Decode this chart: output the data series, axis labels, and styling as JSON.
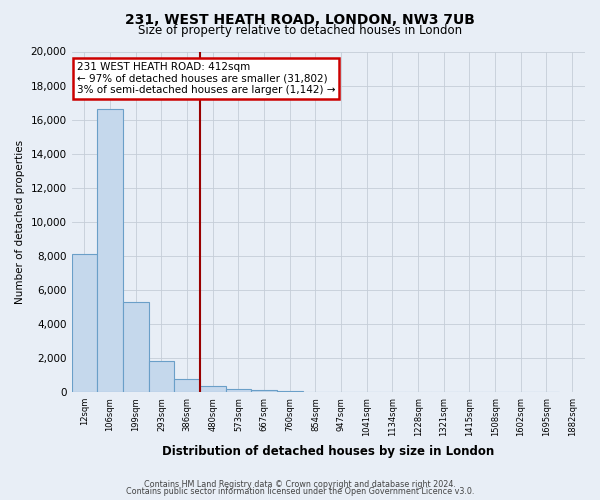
{
  "title": "231, WEST HEATH ROAD, LONDON, NW3 7UB",
  "subtitle": "Size of property relative to detached houses in London",
  "xlabel": "Distribution of detached houses by size in London",
  "ylabel": "Number of detached properties",
  "bar_values": [
    8100,
    16600,
    5300,
    1850,
    800,
    350,
    200,
    150,
    75,
    0,
    0,
    0,
    0,
    0,
    0,
    0,
    0,
    0,
    0
  ],
  "bin_labels": [
    "12sqm",
    "106sqm",
    "199sqm",
    "293sqm",
    "386sqm",
    "480sqm",
    "573sqm",
    "667sqm",
    "760sqm",
    "854sqm",
    "947sqm",
    "1041sqm",
    "1134sqm",
    "1228sqm",
    "1321sqm",
    "1415sqm",
    "1508sqm",
    "1602sqm",
    "1695sqm",
    "1882sqm"
  ],
  "bar_color": "#c5d8ec",
  "bar_edge_color": "#6a9fc8",
  "ylim": [
    0,
    20000
  ],
  "yticks": [
    0,
    2000,
    4000,
    6000,
    8000,
    10000,
    12000,
    14000,
    16000,
    18000,
    20000
  ],
  "vline_x": 4.5,
  "vline_color": "#990000",
  "annotation_text": "231 WEST HEATH ROAD: 412sqm\n← 97% of detached houses are smaller (31,802)\n3% of semi-detached houses are larger (1,142) →",
  "annotation_box_color": "#ffffff",
  "annotation_box_edge": "#cc0000",
  "footer1": "Contains HM Land Registry data © Crown copyright and database right 2024.",
  "footer2": "Contains public sector information licensed under the Open Government Licence v3.0.",
  "background_color": "#e8eef6",
  "plot_bg_color": "#e8eef6",
  "grid_color": "#c5cdd8"
}
